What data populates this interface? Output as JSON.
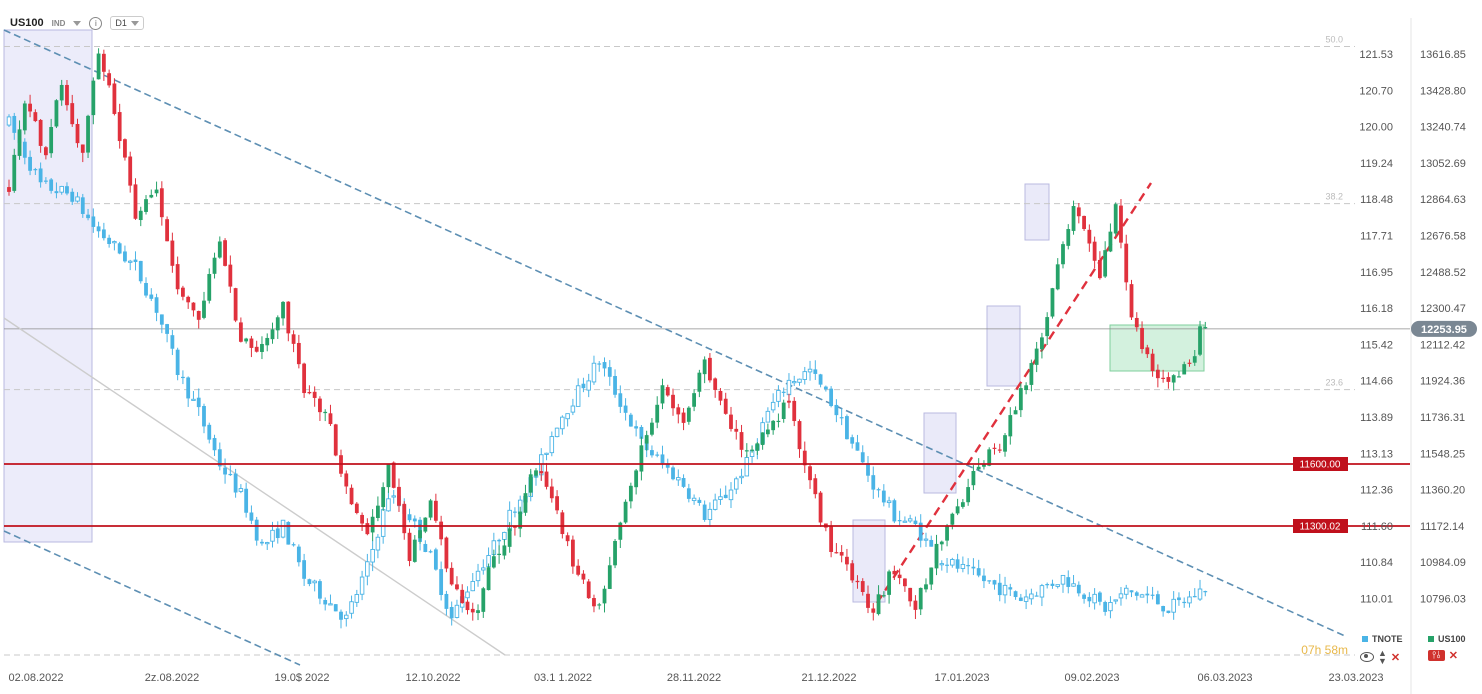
{
  "header": {
    "symbol": "US100",
    "market": "IND",
    "info_icon": "info-icon",
    "timeframe": "D1"
  },
  "countdown": "07h 58m",
  "colors": {
    "tnote_candle": "#4ab4e6",
    "us100_up": "#26a269",
    "us100_down": "#e0313d",
    "support_line": "#c0101c",
    "trend_channel": "#5d8fb3",
    "trend_break": "#e0313d",
    "highlight_box": "#dcdcf5",
    "range_box": "#c8eed6",
    "price_badge": "#7a8793"
  },
  "legend": [
    {
      "name": "TNOTE",
      "color": "#4ab4e6"
    },
    {
      "name": "US100",
      "color": "#26a269"
    }
  ],
  "controls": {
    "eye": "eye-icon",
    "updown": "up-down-icon",
    "close": "close-icon",
    "settings": "settings-icon"
  },
  "chart_data": {
    "type": "candlestick",
    "x_ticks": [
      "02.08.2022",
      "2z.08.2022",
      "19.0$ 2022",
      "12.10.2022",
      "03.1 1.2022",
      "28.11.2022",
      "21.12.2022",
      "17.01.2023",
      "09.02.2023",
      "06.03.2023",
      "23.03.2023"
    ],
    "left_axis_ticks": [
      "121.53",
      "120.70",
      "120.00",
      "119.24",
      "118.48",
      "117.71",
      "116.95",
      "116.18",
      "115.42",
      "114.66",
      "113.89",
      "113.13",
      "112.36",
      "111.60",
      "110.84",
      "110.01"
    ],
    "right_axis_ticks": [
      "13616.85",
      "13428.80",
      "13240.74",
      "13052.69",
      "12864.63",
      "12676.58",
      "12488.52",
      "12300.47",
      "12112.42",
      "11924.36",
      "11736.31",
      "11548.25",
      "11360.20",
      "11172.14",
      "10984.09",
      "10796.03"
    ],
    "right_axis_range": [
      10700,
      13700
    ],
    "current_price_label": "12253.95",
    "current_price": 12253.95,
    "fibonacci": [
      {
        "level": "50.0",
        "price": 13620
      },
      {
        "level": "38.2",
        "price": 12860
      },
      {
        "level": "23.6",
        "price": 11960
      }
    ],
    "support_levels": [
      {
        "label": "11600.00",
        "price": 11600
      },
      {
        "label": "11300.02",
        "price": 11300
      }
    ],
    "series": [
      {
        "name": "US100",
        "style": "filled candles",
        "anchors": [
          [
            0,
            12950
          ],
          [
            3,
            13350
          ],
          [
            7,
            13100
          ],
          [
            10,
            13450
          ],
          [
            14,
            13080
          ],
          [
            17,
            13600
          ],
          [
            20,
            13300
          ],
          [
            24,
            12800
          ],
          [
            28,
            12950
          ],
          [
            32,
            12450
          ],
          [
            36,
            12300
          ],
          [
            40,
            12700
          ],
          [
            44,
            12200
          ],
          [
            48,
            12150
          ],
          [
            52,
            12350
          ],
          [
            56,
            11950
          ],
          [
            60,
            11850
          ],
          [
            64,
            11500
          ],
          [
            68,
            11250
          ],
          [
            72,
            11600
          ],
          [
            76,
            11150
          ],
          [
            80,
            11450
          ],
          [
            84,
            11000
          ],
          [
            88,
            10850
          ],
          [
            92,
            11150
          ],
          [
            96,
            11300
          ],
          [
            100,
            11600
          ],
          [
            104,
            11350
          ],
          [
            108,
            11050
          ],
          [
            112,
            10900
          ],
          [
            116,
            11300
          ],
          [
            120,
            11700
          ],
          [
            124,
            11950
          ],
          [
            128,
            11800
          ],
          [
            132,
            12100
          ],
          [
            136,
            11850
          ],
          [
            140,
            11650
          ],
          [
            144,
            11750
          ],
          [
            148,
            11900
          ],
          [
            152,
            11500
          ],
          [
            156,
            11200
          ],
          [
            160,
            11050
          ],
          [
            164,
            10900
          ],
          [
            168,
            11100
          ],
          [
            172,
            10900
          ],
          [
            176,
            11200
          ],
          [
            180,
            11400
          ],
          [
            184,
            11600
          ],
          [
            188,
            11700
          ],
          [
            192,
            11950
          ],
          [
            196,
            12200
          ],
          [
            200,
            12650
          ],
          [
            202,
            12880
          ],
          [
            205,
            12700
          ],
          [
            207,
            12500
          ],
          [
            210,
            12850
          ],
          [
            213,
            12300
          ],
          [
            216,
            12100
          ],
          [
            219,
            11980
          ],
          [
            222,
            12050
          ],
          [
            225,
            12150
          ],
          [
            226,
            12300
          ],
          [
            227,
            12254
          ]
        ]
      },
      {
        "name": "TNOTE",
        "style": "hollow candles",
        "anchors": [
          [
            0,
            13250
          ],
          [
            6,
            12950
          ],
          [
            12,
            12900
          ],
          [
            16,
            12750
          ],
          [
            20,
            12650
          ],
          [
            24,
            12550
          ],
          [
            28,
            12350
          ],
          [
            32,
            12050
          ],
          [
            36,
            11850
          ],
          [
            40,
            11600
          ],
          [
            44,
            11450
          ],
          [
            48,
            11200
          ],
          [
            52,
            11300
          ],
          [
            56,
            11050
          ],
          [
            60,
            10950
          ],
          [
            64,
            10850
          ],
          [
            68,
            11100
          ],
          [
            72,
            11450
          ],
          [
            76,
            11350
          ],
          [
            80,
            11150
          ],
          [
            84,
            10850
          ],
          [
            88,
            11050
          ],
          [
            92,
            11200
          ],
          [
            96,
            11400
          ],
          [
            100,
            11550
          ],
          [
            104,
            11800
          ],
          [
            108,
            11950
          ],
          [
            112,
            12100
          ],
          [
            116,
            11900
          ],
          [
            120,
            11700
          ],
          [
            124,
            11600
          ],
          [
            128,
            11500
          ],
          [
            132,
            11350
          ],
          [
            136,
            11450
          ],
          [
            140,
            11600
          ],
          [
            144,
            11850
          ],
          [
            148,
            12000
          ],
          [
            152,
            12050
          ],
          [
            156,
            11900
          ],
          [
            160,
            11700
          ],
          [
            164,
            11500
          ],
          [
            168,
            11350
          ],
          [
            172,
            11300
          ],
          [
            176,
            11150
          ],
          [
            180,
            11100
          ],
          [
            184,
            11050
          ],
          [
            188,
            11000
          ],
          [
            192,
            10950
          ],
          [
            196,
            11000
          ],
          [
            200,
            11050
          ],
          [
            204,
            10980
          ],
          [
            208,
            10900
          ],
          [
            212,
            10980
          ],
          [
            216,
            10960
          ],
          [
            220,
            10900
          ],
          [
            224,
            10950
          ],
          [
            227,
            11000
          ]
        ]
      }
    ],
    "bars": 228,
    "title": "",
    "xlabel": "",
    "ylabel": ""
  }
}
